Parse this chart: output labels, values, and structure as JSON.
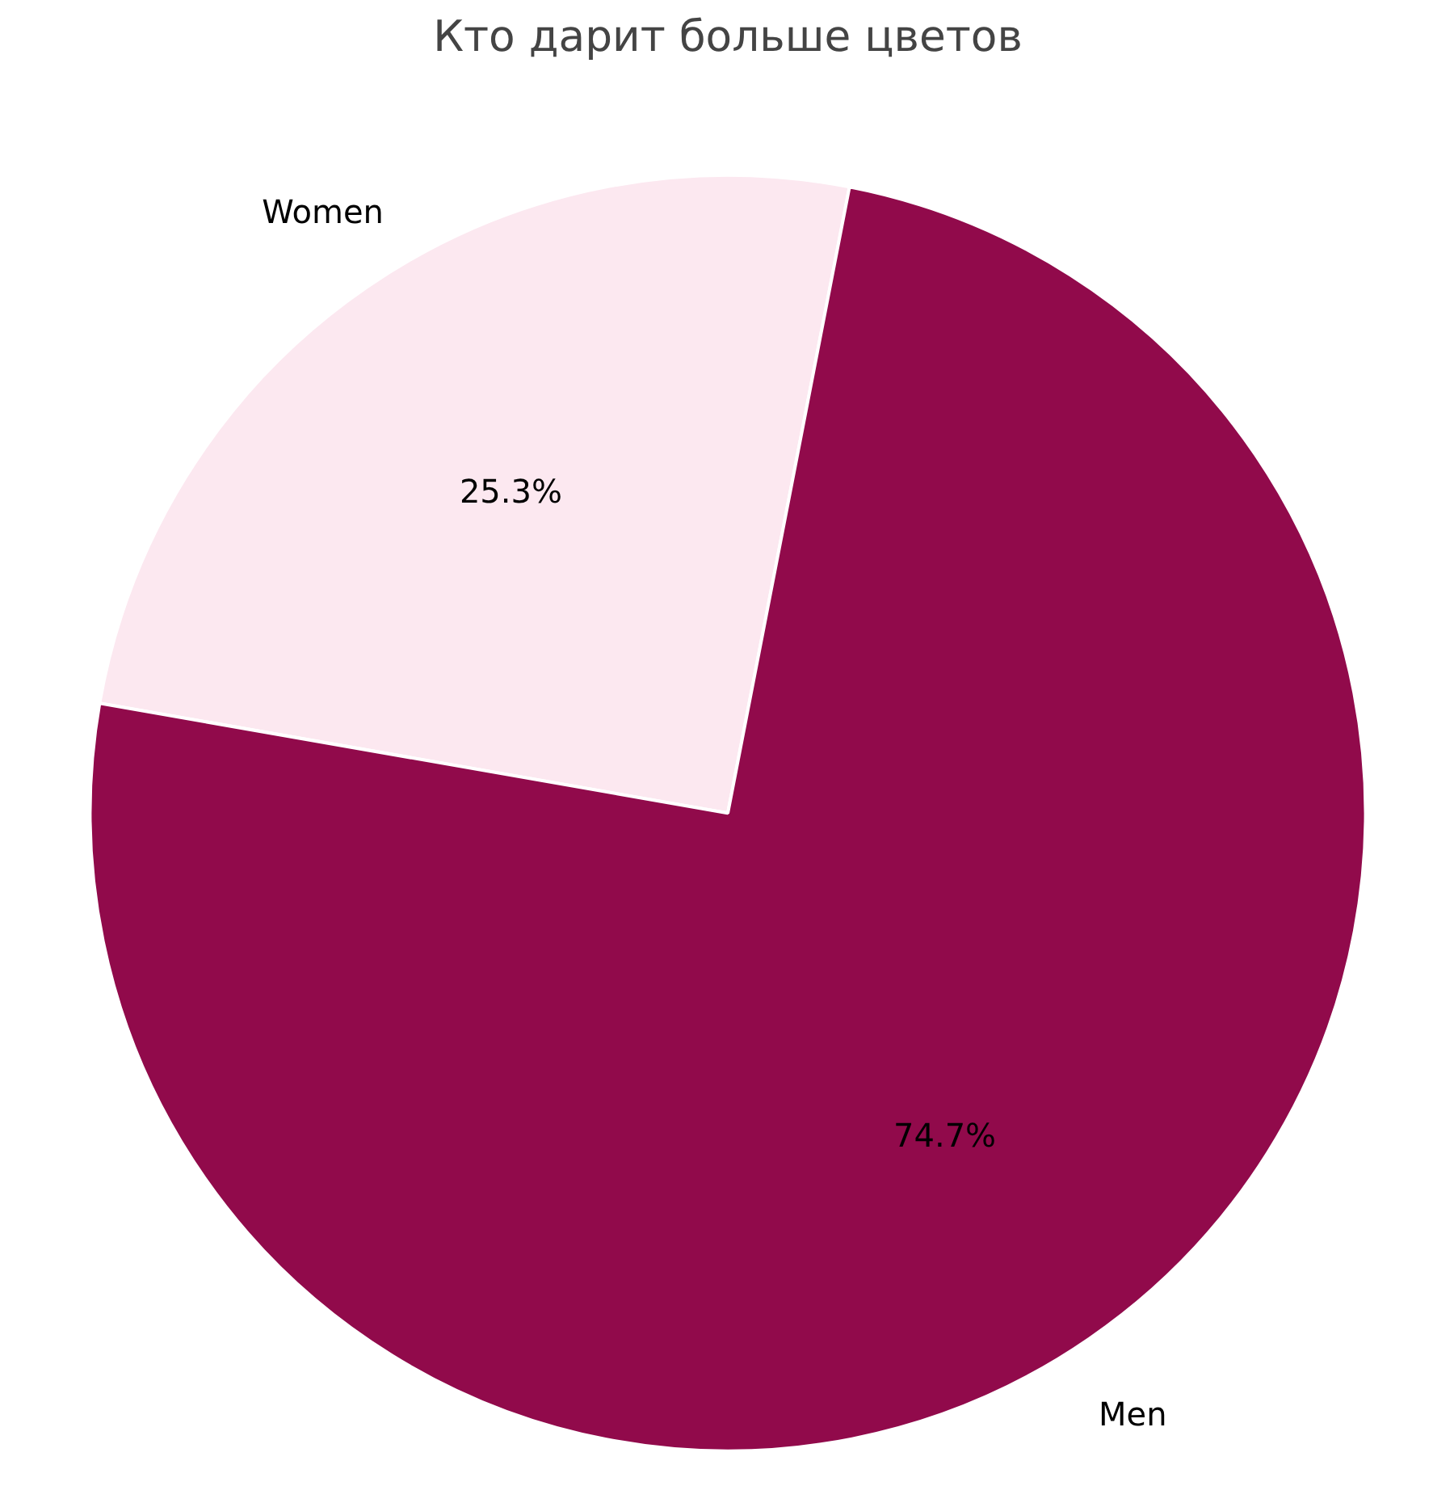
{
  "chart_data": {
    "type": "pie",
    "title": "Кто дарит больше цветов",
    "categories": [
      "Women",
      "Men"
    ],
    "values": [
      25.3,
      74.7
    ],
    "value_labels": [
      "25.3%",
      "74.7%"
    ],
    "colors": [
      "#fce8f0",
      "#910a4b"
    ]
  }
}
